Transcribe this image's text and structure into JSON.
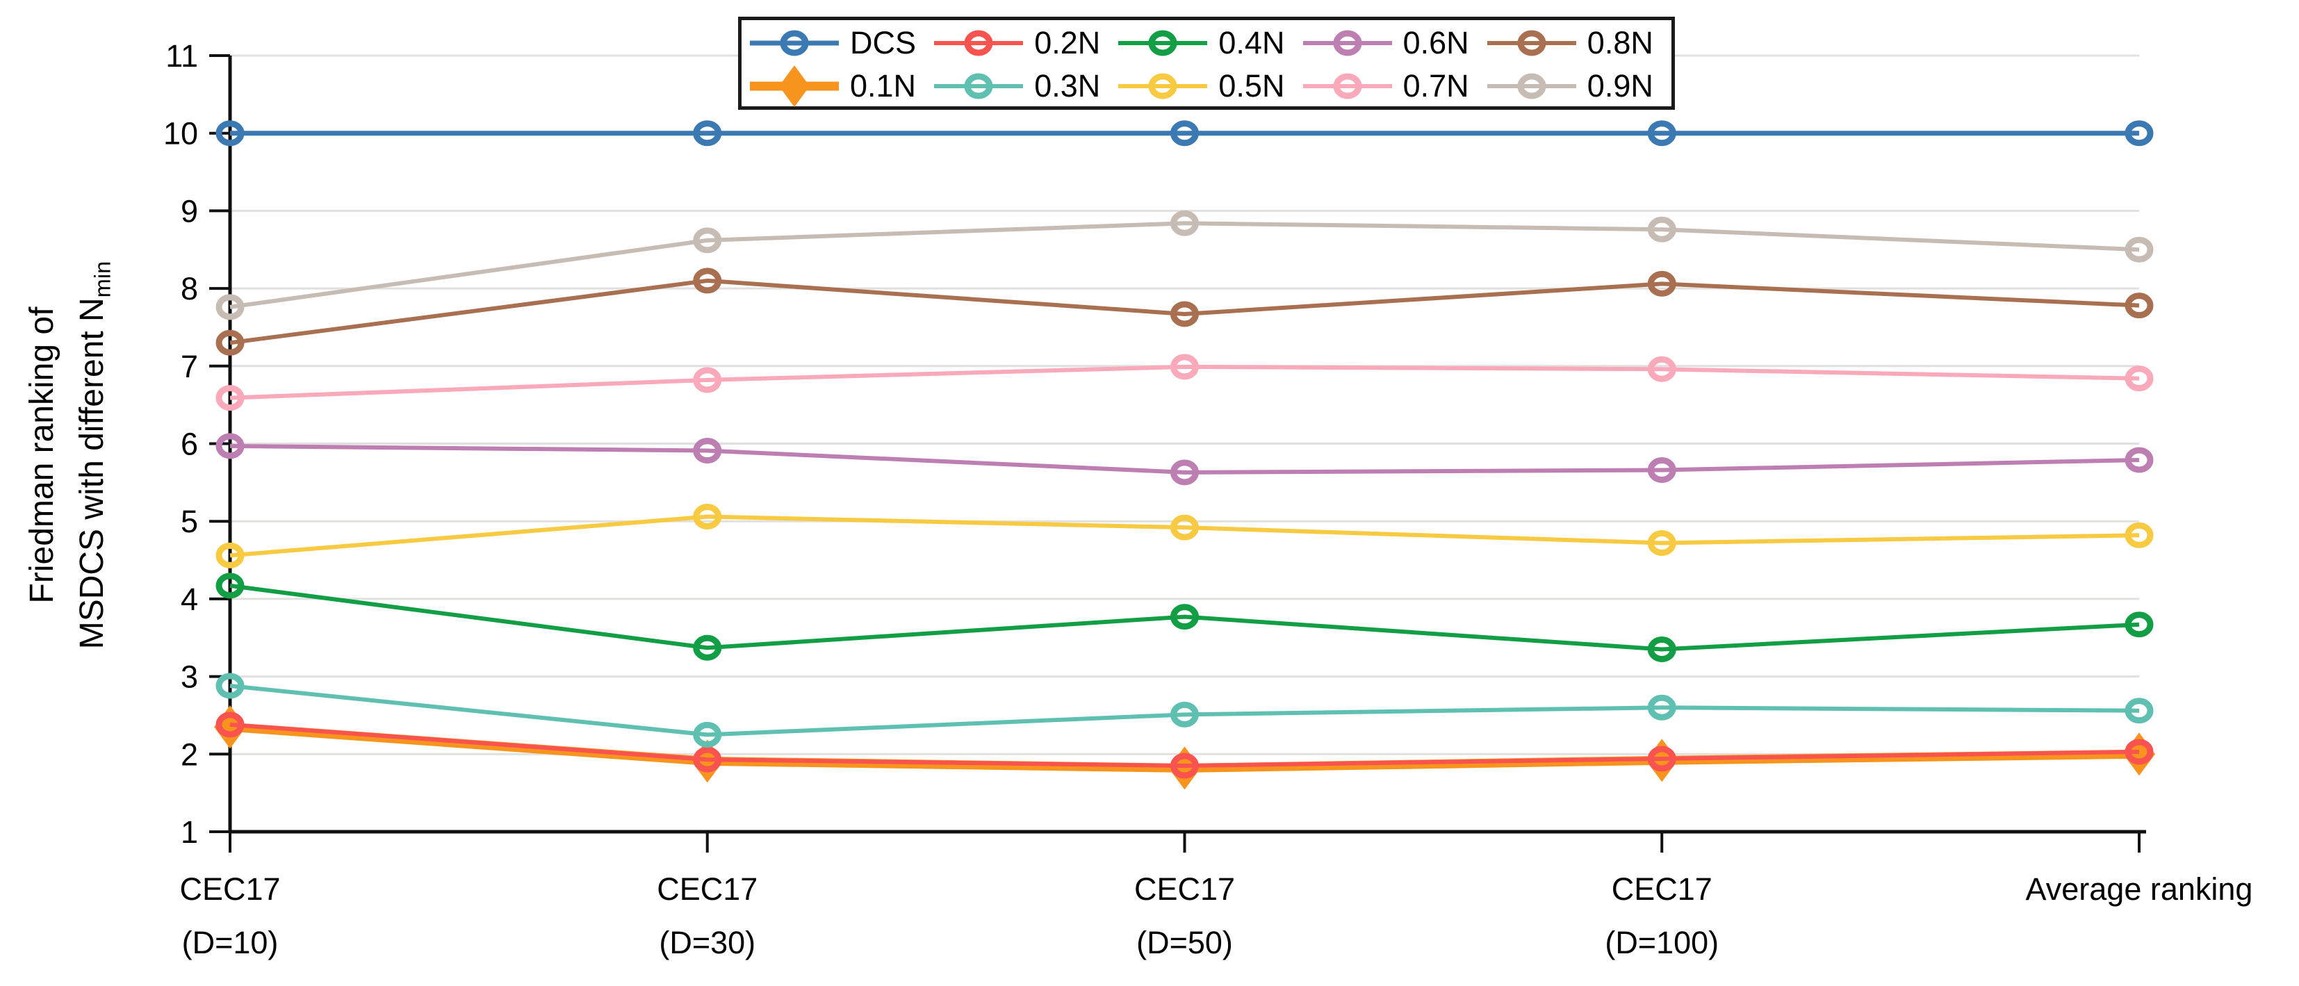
{
  "chart_data": {
    "type": "line",
    "title": "",
    "ylabel_line1": "Friedman ranking of",
    "ylabel_line2": "MSDCS with different N",
    "ylabel_sub": "min",
    "xlabel": "",
    "categories": [
      [
        "CEC17",
        "(D=10)"
      ],
      [
        "CEC17",
        "(D=30)"
      ],
      [
        "CEC17",
        "(D=50)"
      ],
      [
        "CEC17",
        "(D=100)"
      ],
      [
        "Average ranking"
      ]
    ],
    "ylim": [
      1,
      11
    ],
    "yticks": [
      1,
      2,
      3,
      4,
      5,
      6,
      7,
      8,
      9,
      10,
      11
    ],
    "grid": "horizontal",
    "grid_color": "#e2e0de",
    "axis_color": "#111111",
    "legend_position": "top-center",
    "legend_rows": [
      [
        "DCS",
        "0.2N",
        "0.4N",
        "0.6N",
        "0.8N"
      ],
      [
        "0.1N",
        "0.3N",
        "0.5N",
        "0.7N",
        "0.9N"
      ]
    ],
    "series": [
      {
        "name": "DCS",
        "color": "#3a79b2",
        "marker": "circle",
        "width": 7,
        "values": [
          10,
          10,
          10,
          10,
          10
        ]
      },
      {
        "name": "0.1N",
        "color": "#f7941e",
        "marker": "diamond",
        "width": 13,
        "values": [
          2.35,
          1.91,
          1.82,
          1.92,
          2.0
        ]
      },
      {
        "name": "0.2N",
        "color": "#f8534f",
        "marker": "circle",
        "width": 6,
        "values": [
          2.38,
          1.93,
          1.85,
          1.94,
          2.03
        ]
      },
      {
        "name": "0.3N",
        "color": "#5fc0b2",
        "marker": "circle",
        "width": 6,
        "values": [
          2.88,
          2.25,
          2.51,
          2.6,
          2.56
        ]
      },
      {
        "name": "0.4N",
        "color": "#129e45",
        "marker": "circle",
        "width": 6,
        "values": [
          4.17,
          3.37,
          3.77,
          3.35,
          3.67
        ]
      },
      {
        "name": "0.5N",
        "color": "#f7ca42",
        "marker": "circle",
        "width": 6,
        "values": [
          4.56,
          5.06,
          4.92,
          4.72,
          4.82
        ]
      },
      {
        "name": "0.6N",
        "color": "#bd7eb2",
        "marker": "circle",
        "width": 6,
        "values": [
          5.97,
          5.91,
          5.63,
          5.66,
          5.79
        ]
      },
      {
        "name": "0.7N",
        "color": "#f9a9ba",
        "marker": "circle",
        "width": 6,
        "values": [
          6.59,
          6.82,
          6.99,
          6.96,
          6.84
        ]
      },
      {
        "name": "0.8N",
        "color": "#a87050",
        "marker": "circle",
        "width": 6,
        "values": [
          7.3,
          8.1,
          7.67,
          8.06,
          7.78
        ]
      },
      {
        "name": "0.9N",
        "color": "#c6bcb4",
        "marker": "circle",
        "width": 6,
        "values": [
          7.76,
          8.62,
          8.84,
          8.76,
          8.5
        ]
      }
    ]
  }
}
